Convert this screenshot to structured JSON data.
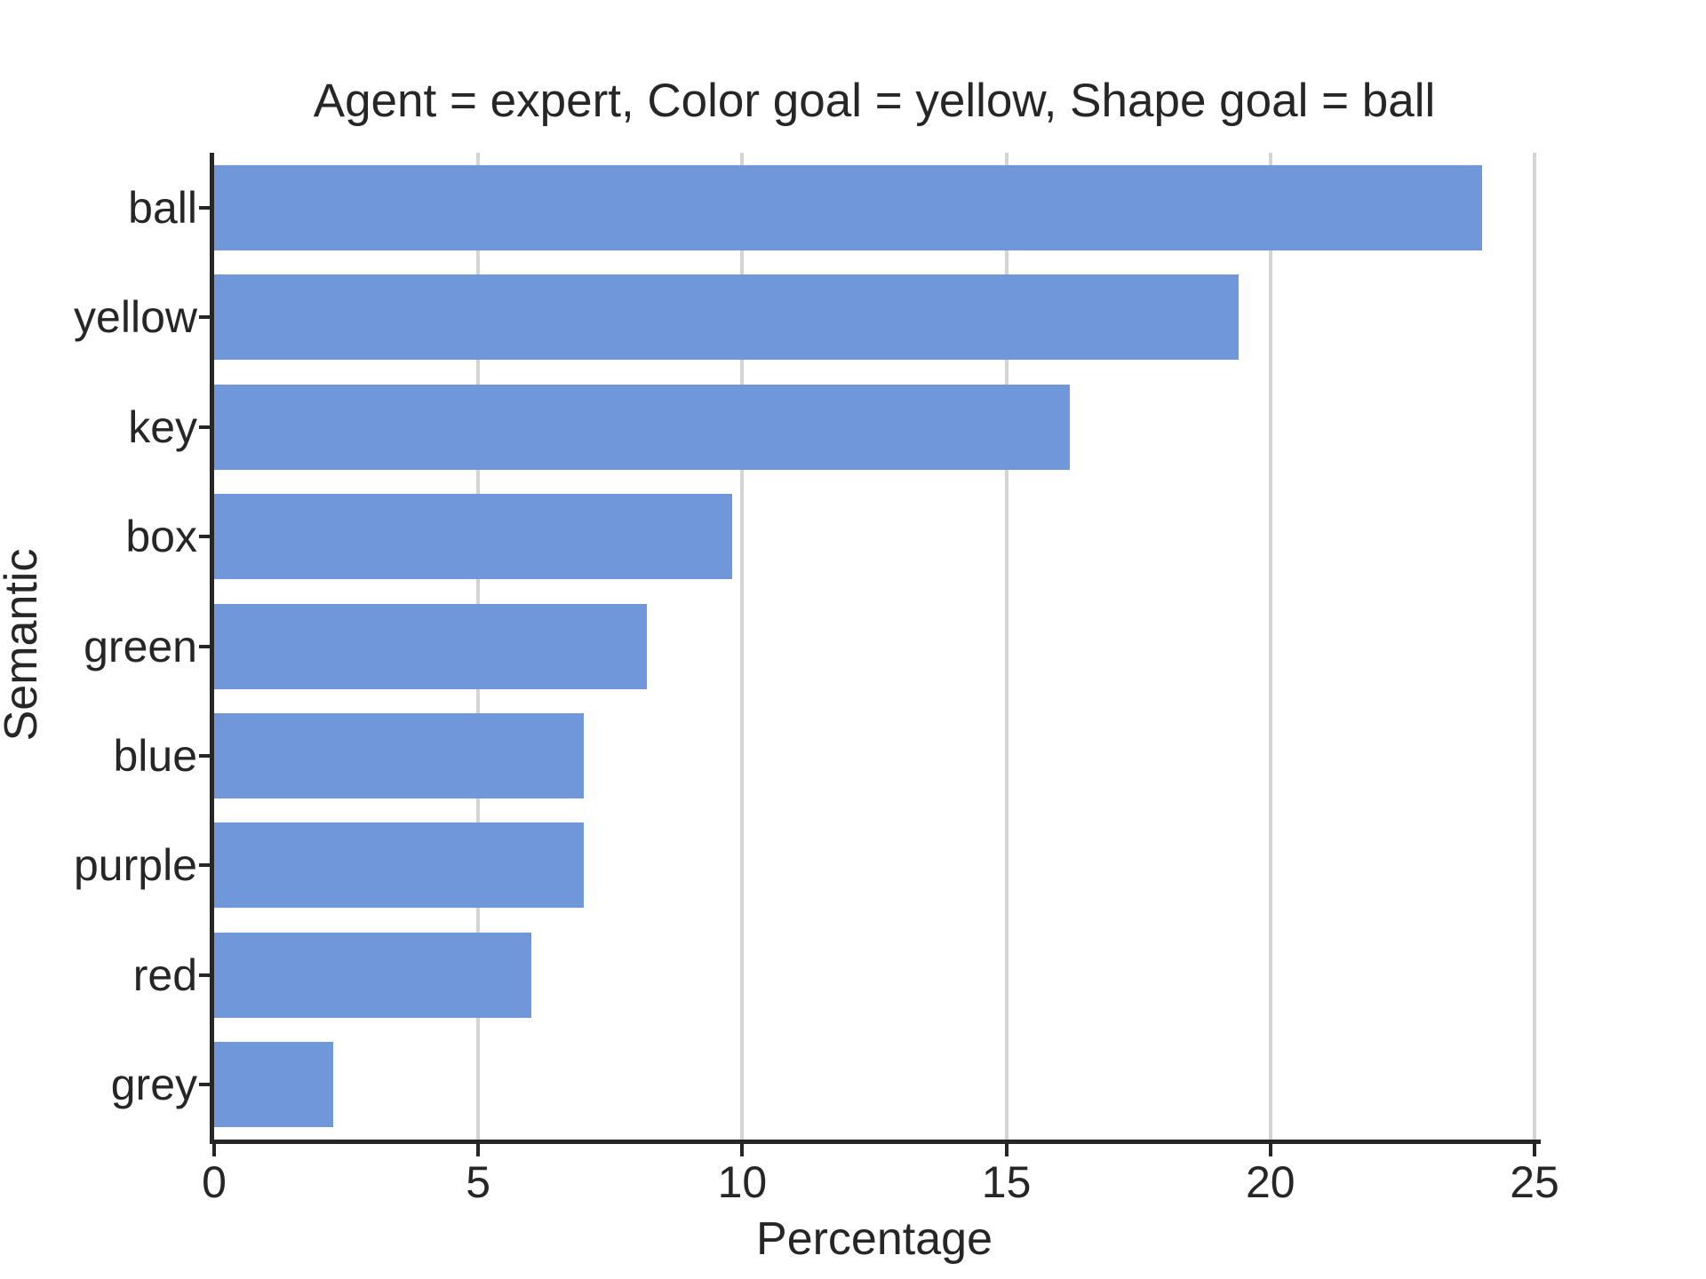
{
  "chart_data": {
    "type": "bar",
    "orientation": "horizontal",
    "title": "Agent = expert, Color goal = yellow, Shape goal = ball",
    "xlabel": "Percentage",
    "ylabel": "Semantic",
    "categories": [
      "ball",
      "yellow",
      "key",
      "box",
      "green",
      "blue",
      "purple",
      "red",
      "grey"
    ],
    "values": [
      24.0,
      19.4,
      16.2,
      9.8,
      8.2,
      7.0,
      7.0,
      6.0,
      2.25
    ],
    "xlim": [
      0,
      25
    ],
    "xticks": [
      0,
      5,
      10,
      15,
      20,
      25
    ],
    "grid": "vertical gridlines at x ticks, drawn under bars",
    "legend": "none",
    "colors": {
      "bar": "#7097d9",
      "gridline": "#d4d4d4",
      "spine": "#262626",
      "text": "#262626",
      "background": "#ffffff"
    }
  }
}
